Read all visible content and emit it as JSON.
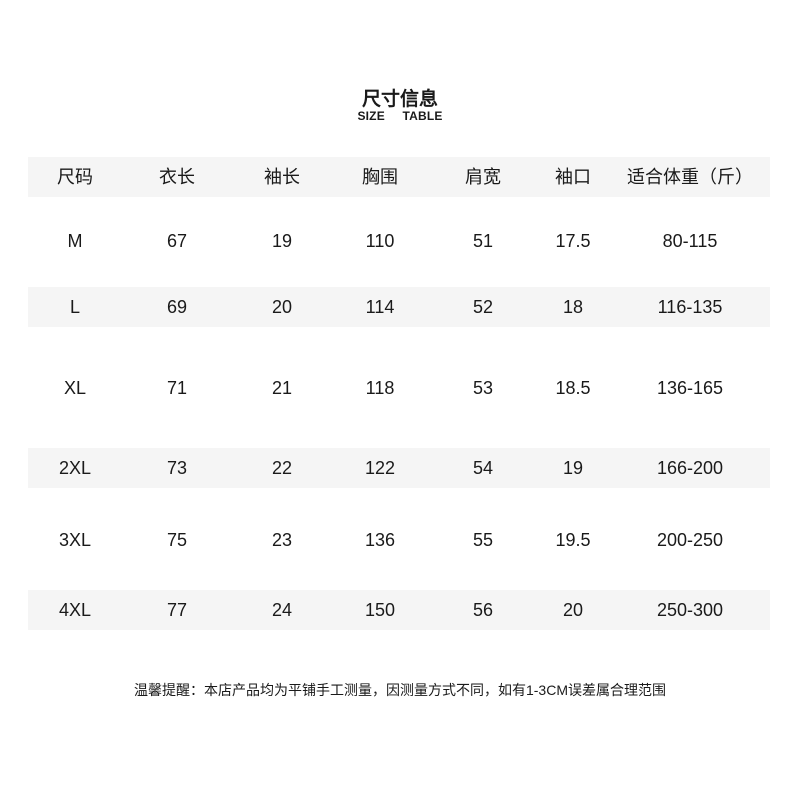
{
  "title": "尺寸信息",
  "subtitle": "SIZE TABLE",
  "table": {
    "headers": [
      "尺码",
      "衣长",
      "袖长",
      "胸围",
      "肩宽",
      "袖口",
      "适合体重（斤）"
    ],
    "rows": [
      [
        "M",
        "67",
        "19",
        "110",
        "51",
        "17.5",
        "80-115"
      ],
      [
        "L",
        "69",
        "20",
        "114",
        "52",
        "18",
        "116-135"
      ],
      [
        "XL",
        "71",
        "21",
        "118",
        "53",
        "18.5",
        "136-165"
      ],
      [
        "2XL",
        "73",
        "22",
        "122",
        "54",
        "19",
        "166-200"
      ],
      [
        "3XL",
        "75",
        "23",
        "136",
        "55",
        "19.5",
        "200-250"
      ],
      [
        "4XL",
        "77",
        "24",
        "150",
        "56",
        "20",
        "250-300"
      ]
    ]
  },
  "note": "温馨提醒：本店产品均为平铺手工测量，因测量方式不同，如有1-3CM误差属合理范围",
  "colors": {
    "row_shade": "#f5f5f5",
    "text": "#1a1a1a"
  }
}
